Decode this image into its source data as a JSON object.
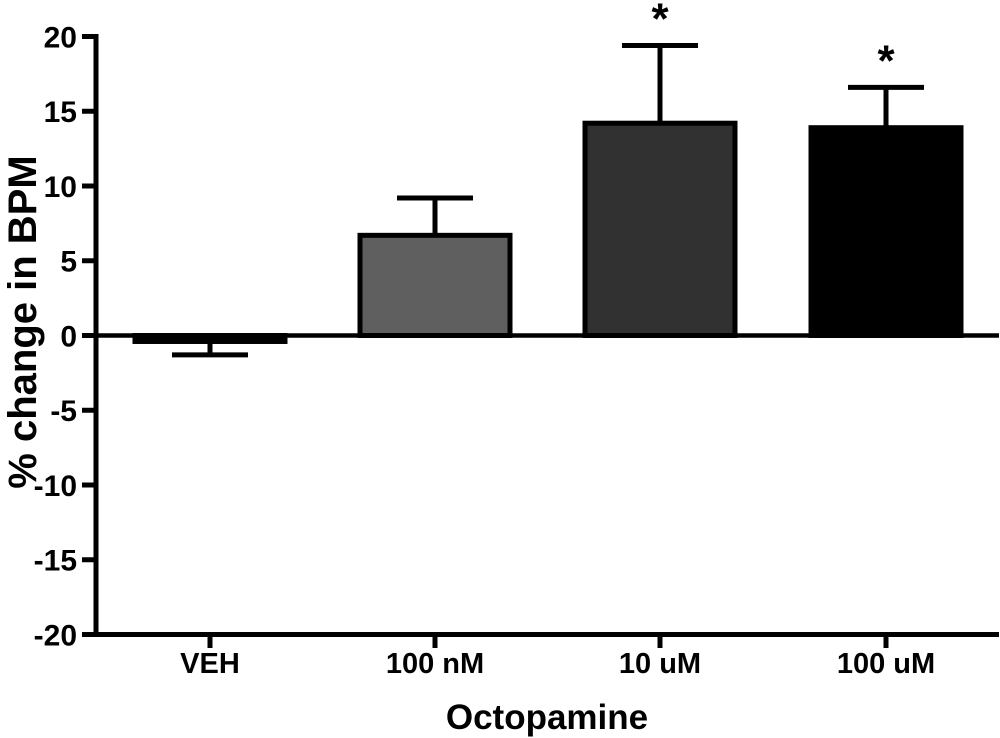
{
  "figure": {
    "background": "#ffffff",
    "axis_color": "#000000",
    "description": "Bar graph of percent change in BPM for octopamine doses with SEM error bars"
  },
  "chart_data": {
    "type": "bar",
    "title": "",
    "xlabel": "Octopamine",
    "ylabel": "% change in BPM",
    "categories": [
      "VEH",
      "100 nM",
      "10 uM",
      "100 uM"
    ],
    "values": [
      -0.4,
      6.7,
      14.2,
      13.9
    ],
    "errors": [
      0.9,
      2.5,
      5.2,
      2.7
    ],
    "error_direction": "away-from-zero",
    "significance": [
      "",
      "",
      "*",
      "*"
    ],
    "bar_colors": [
      "#000000",
      "#5f5f60",
      "#313131",
      "#000000"
    ],
    "bar_edge_color": "#000000",
    "ylim": [
      -20,
      20
    ],
    "yticks": [
      20,
      15,
      10,
      5,
      0,
      -5,
      -10,
      -15,
      -20
    ],
    "baseline": 0,
    "grid": false,
    "legend": false
  }
}
